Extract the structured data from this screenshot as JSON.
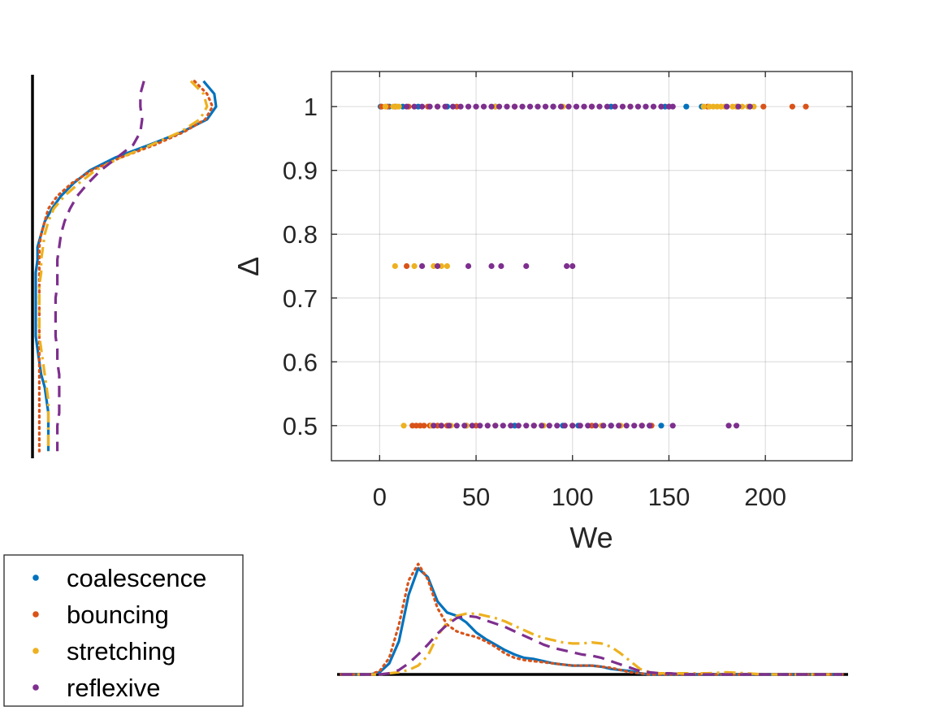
{
  "chart_data": {
    "type": "scatter",
    "xlabel": "We",
    "ylabel": "Δ",
    "xlim": [
      -25,
      245
    ],
    "ylim": [
      0.445,
      1.055
    ],
    "xticks": [
      0,
      50,
      100,
      150,
      200
    ],
    "xtick_labels": [
      "0",
      "50",
      "100",
      "150",
      "200"
    ],
    "yticks": [
      0.5,
      0.6,
      0.7,
      0.8,
      0.9,
      1
    ],
    "ytick_labels": [
      "0.5",
      "0.6",
      "0.7",
      "0.8",
      "0.9",
      "1"
    ],
    "grid": true,
    "legend": {
      "location": "bottom-left",
      "entries": [
        "coalescence",
        "bouncing",
        "stretching",
        "reflexive"
      ]
    },
    "series": [
      {
        "name": "coalescence",
        "color": "#0072BD",
        "marginal_line": "solid",
        "points": [
          [
            0.5,
            1
          ],
          [
            5,
            1
          ],
          [
            12,
            1
          ],
          [
            20,
            1
          ],
          [
            35,
            1
          ],
          [
            60,
            1
          ],
          [
            90,
            1
          ],
          [
            120,
            1
          ],
          [
            148,
            1
          ],
          [
            159,
            1
          ],
          [
            167,
            1
          ],
          [
            45,
            0.5
          ],
          [
            70,
            0.5
          ],
          [
            95,
            0.5
          ],
          [
            103,
            0.5
          ],
          [
            120,
            0.5
          ],
          [
            140,
            0.5
          ],
          [
            146,
            0.5
          ]
        ]
      },
      {
        "name": "bouncing",
        "color": "#D95319",
        "marginal_line": "dotted",
        "points": [
          [
            1,
            1
          ],
          [
            4,
            1
          ],
          [
            8,
            1
          ],
          [
            15,
            1
          ],
          [
            25,
            1
          ],
          [
            40,
            1
          ],
          [
            70,
            1
          ],
          [
            110,
            1
          ],
          [
            150,
            1
          ],
          [
            170,
            1
          ],
          [
            185,
            1
          ],
          [
            199,
            1
          ],
          [
            214,
            1
          ],
          [
            221,
            1
          ],
          [
            14,
            0.75
          ],
          [
            17,
            0.5
          ],
          [
            19,
            0.5
          ],
          [
            21,
            0.5
          ],
          [
            23,
            0.5
          ],
          [
            26,
            0.5
          ],
          [
            30,
            0.5
          ],
          [
            35,
            0.5
          ],
          [
            50,
            0.5
          ],
          [
            80,
            0.5
          ],
          [
            110,
            0.5
          ],
          [
            136,
            0.5
          ],
          [
            141,
            0.5
          ]
        ]
      },
      {
        "name": "stretching",
        "color": "#EDB120",
        "marginal_line": "dashdot",
        "points": [
          [
            3,
            1
          ],
          [
            7,
            1
          ],
          [
            9,
            1
          ],
          [
            10,
            1
          ],
          [
            30,
            1
          ],
          [
            60,
            1
          ],
          [
            95,
            1
          ],
          [
            130,
            1
          ],
          [
            168,
            1
          ],
          [
            171,
            1
          ],
          [
            173,
            1
          ],
          [
            175,
            1
          ],
          [
            177,
            1
          ],
          [
            179,
            1
          ],
          [
            183,
            1
          ],
          [
            185,
            1
          ],
          [
            188,
            1
          ],
          [
            191,
            1
          ],
          [
            194,
            1
          ],
          [
            8,
            0.75
          ],
          [
            18,
            0.75
          ],
          [
            28,
            0.75
          ],
          [
            32,
            0.75
          ],
          [
            35,
            0.75
          ],
          [
            12.5,
            0.5
          ],
          [
            27,
            0.5
          ],
          [
            32,
            0.5
          ],
          [
            37,
            0.5
          ],
          [
            45,
            0.5
          ],
          [
            60,
            0.5
          ],
          [
            85,
            0.5
          ],
          [
            100,
            0.5
          ],
          [
            115,
            0.5
          ],
          [
            125,
            0.5
          ]
        ]
      },
      {
        "name": "reflexive",
        "color": "#7E2F8E",
        "marginal_line": "dashed",
        "points": [
          [
            14,
            1
          ],
          [
            18,
            1
          ],
          [
            22,
            1
          ],
          [
            26,
            1
          ],
          [
            30,
            1
          ],
          [
            34,
            1
          ],
          [
            38,
            1
          ],
          [
            42,
            1
          ],
          [
            46,
            1
          ],
          [
            50,
            1
          ],
          [
            54,
            1
          ],
          [
            58,
            1
          ],
          [
            62,
            1
          ],
          [
            66,
            1
          ],
          [
            70,
            1
          ],
          [
            74,
            1
          ],
          [
            78,
            1
          ],
          [
            82,
            1
          ],
          [
            86,
            1
          ],
          [
            90,
            1
          ],
          [
            94,
            1
          ],
          [
            98,
            1
          ],
          [
            102,
            1
          ],
          [
            106,
            1
          ],
          [
            110,
            1
          ],
          [
            114,
            1
          ],
          [
            118,
            1
          ],
          [
            122,
            1
          ],
          [
            126,
            1
          ],
          [
            130,
            1
          ],
          [
            134,
            1
          ],
          [
            138,
            1
          ],
          [
            142,
            1
          ],
          [
            146,
            1
          ],
          [
            150,
            1
          ],
          [
            152,
            1
          ],
          [
            180,
            1
          ],
          [
            186,
            1
          ],
          [
            192,
            1
          ],
          [
            22,
            0.75
          ],
          [
            30,
            0.75
          ],
          [
            46,
            0.75
          ],
          [
            58,
            0.75
          ],
          [
            63,
            0.75
          ],
          [
            76,
            0.75
          ],
          [
            97,
            0.75
          ],
          [
            100,
            0.75
          ],
          [
            28,
            0.5
          ],
          [
            32,
            0.5
          ],
          [
            36,
            0.5
          ],
          [
            40,
            0.5
          ],
          [
            44,
            0.5
          ],
          [
            48,
            0.5
          ],
          [
            52,
            0.5
          ],
          [
            56,
            0.5
          ],
          [
            60,
            0.5
          ],
          [
            64,
            0.5
          ],
          [
            68,
            0.5
          ],
          [
            72,
            0.5
          ],
          [
            76,
            0.5
          ],
          [
            80,
            0.5
          ],
          [
            84,
            0.5
          ],
          [
            88,
            0.5
          ],
          [
            92,
            0.5
          ],
          [
            96,
            0.5
          ],
          [
            100,
            0.5
          ],
          [
            104,
            0.5
          ],
          [
            108,
            0.5
          ],
          [
            112,
            0.5
          ],
          [
            116,
            0.5
          ],
          [
            120,
            0.5
          ],
          [
            124,
            0.5
          ],
          [
            128,
            0.5
          ],
          [
            132,
            0.5
          ],
          [
            136,
            0.5
          ],
          [
            140,
            0.5
          ],
          [
            152,
            0.5
          ],
          [
            181,
            0.5
          ],
          [
            185,
            0.5
          ]
        ]
      }
    ],
    "marginal_x": {
      "type": "line",
      "description": "density of We",
      "x": [
        -20,
        -5,
        0,
        5,
        10,
        15,
        20,
        25,
        30,
        35,
        40,
        45,
        50,
        55,
        60,
        65,
        70,
        75,
        80,
        85,
        90,
        95,
        100,
        105,
        110,
        115,
        120,
        125,
        130,
        135,
        140,
        145,
        150,
        160,
        170,
        180,
        190,
        200,
        220,
        240
      ],
      "series": [
        {
          "name": "coalescence",
          "values": [
            0,
            0,
            0.02,
            0.1,
            0.3,
            0.72,
            0.96,
            0.88,
            0.66,
            0.56,
            0.53,
            0.47,
            0.38,
            0.32,
            0.27,
            0.22,
            0.18,
            0.15,
            0.14,
            0.12,
            0.1,
            0.09,
            0.08,
            0.08,
            0.08,
            0.07,
            0.05,
            0.04,
            0.03,
            0.01,
            0,
            0,
            0,
            0,
            0,
            0,
            0,
            0,
            0,
            0
          ]
        },
        {
          "name": "bouncing",
          "values": [
            0,
            0,
            0.03,
            0.15,
            0.45,
            0.85,
            1.0,
            0.86,
            0.6,
            0.45,
            0.39,
            0.36,
            0.34,
            0.3,
            0.25,
            0.19,
            0.15,
            0.13,
            0.12,
            0.11,
            0.1,
            0.09,
            0.08,
            0.08,
            0.08,
            0.07,
            0.06,
            0.04,
            0.02,
            0.01,
            0,
            0,
            0,
            0,
            0,
            0,
            0,
            0,
            0,
            0
          ]
        },
        {
          "name": "stretching",
          "values": [
            0,
            0,
            0,
            0.01,
            0.02,
            0.04,
            0.08,
            0.17,
            0.35,
            0.47,
            0.53,
            0.55,
            0.55,
            0.53,
            0.51,
            0.48,
            0.44,
            0.4,
            0.36,
            0.33,
            0.31,
            0.29,
            0.28,
            0.28,
            0.29,
            0.28,
            0.25,
            0.19,
            0.12,
            0.05,
            0.02,
            0.01,
            0.01,
            0.01,
            0.01,
            0.02,
            0.01,
            0,
            0,
            0
          ]
        },
        {
          "name": "reflexive",
          "values": [
            0,
            0,
            0,
            0.01,
            0.04,
            0.1,
            0.18,
            0.27,
            0.37,
            0.45,
            0.51,
            0.53,
            0.52,
            0.49,
            0.46,
            0.43,
            0.39,
            0.35,
            0.31,
            0.27,
            0.24,
            0.22,
            0.2,
            0.18,
            0.17,
            0.15,
            0.12,
            0.09,
            0.06,
            0.03,
            0.02,
            0.01,
            0.01,
            0,
            0,
            0,
            0,
            0,
            0,
            0
          ]
        }
      ]
    },
    "marginal_y": {
      "type": "line",
      "description": "density of Δ",
      "y": [
        1.04,
        1.02,
        1.0,
        0.98,
        0.96,
        0.94,
        0.92,
        0.9,
        0.88,
        0.86,
        0.84,
        0.82,
        0.8,
        0.78,
        0.76,
        0.74,
        0.72,
        0.7,
        0.68,
        0.66,
        0.64,
        0.62,
        0.6,
        0.58,
        0.56,
        0.54,
        0.52,
        0.5,
        0.48,
        0.46
      ],
      "series": [
        {
          "name": "coalescence",
          "values": [
            0.93,
            0.99,
            1.0,
            0.95,
            0.81,
            0.63,
            0.44,
            0.3,
            0.21,
            0.14,
            0.09,
            0.05,
            0.03,
            0.01,
            0.01,
            0.0,
            0.0,
            0.0,
            0.0,
            0.0,
            0.0,
            0.01,
            0.02,
            0.03,
            0.05,
            0.06,
            0.07,
            0.07,
            0.07,
            0.07
          ]
        },
        {
          "name": "bouncing",
          "values": [
            0.88,
            0.95,
            0.98,
            0.94,
            0.82,
            0.66,
            0.47,
            0.31,
            0.2,
            0.12,
            0.07,
            0.05,
            0.03,
            0.02,
            0.02,
            0.02,
            0.02,
            0.02,
            0.02,
            0.02,
            0.02,
            0.02,
            0.02,
            0.02,
            0.02,
            0.02,
            0.02,
            0.02,
            0.02,
            0.02
          ]
        },
        {
          "name": "stretching",
          "values": [
            0.86,
            0.93,
            0.95,
            0.91,
            0.8,
            0.64,
            0.47,
            0.33,
            0.24,
            0.16,
            0.1,
            0.07,
            0.05,
            0.04,
            0.03,
            0.03,
            0.02,
            0.02,
            0.02,
            0.02,
            0.02,
            0.03,
            0.04,
            0.05,
            0.06,
            0.07,
            0.07,
            0.07,
            0.07,
            0.07
          ]
        },
        {
          "name": "reflexive",
          "values": [
            0.6,
            0.58,
            0.58,
            0.59,
            0.58,
            0.54,
            0.45,
            0.36,
            0.29,
            0.23,
            0.19,
            0.16,
            0.14,
            0.13,
            0.12,
            0.12,
            0.12,
            0.11,
            0.11,
            0.11,
            0.11,
            0.12,
            0.12,
            0.13,
            0.13,
            0.13,
            0.13,
            0.12,
            0.12,
            0.12
          ]
        }
      ]
    }
  }
}
